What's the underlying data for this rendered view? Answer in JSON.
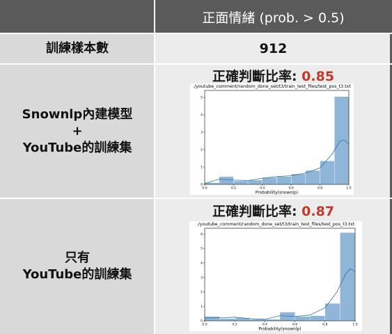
{
  "table": {
    "header_col1": "",
    "header_col2": "正面情緒 (prob. > 0.5)",
    "row1": {
      "label": "訓練樣本數",
      "value": "912"
    },
    "row2": {
      "label_line1": "Snownlp內建模型",
      "label_line2": "+",
      "label_line3": "YouTube的訓練集",
      "acc_label": "正確判斷比率: ",
      "acc_value": "0.85"
    },
    "row3": {
      "label_line1": "只有",
      "label_line2": "YouTube的訓練集",
      "acc_label": "正確判斷比率: ",
      "acc_value": "0.87"
    }
  },
  "colors": {
    "header_bg": "#5a5a5a",
    "label_bg": "#d9d9d9",
    "value_bg": "#ececec",
    "accent": "#c0392b",
    "bar": "#8fb5d7",
    "kde": "#2a6fb0"
  },
  "chart_data": [
    {
      "type": "bar",
      "title": "./youtube_comment/random_done_set/t3/train_test_files/test_pos_t3.txt",
      "xlabel": "Probability(snownlp)",
      "ylabel": "",
      "xlim": [
        0,
        1
      ],
      "ylim": [
        0,
        5.4
      ],
      "x_ticks": [
        "0.0",
        "0.2",
        "0.4",
        "0.6",
        "0.8",
        "1.0"
      ],
      "y_ticks": [
        "0",
        "1",
        "2",
        "3",
        "4",
        "5"
      ],
      "bins": [
        [
          0.0,
          0.1,
          0.1
        ],
        [
          0.1,
          0.2,
          0.45
        ],
        [
          0.2,
          0.3,
          0.2
        ],
        [
          0.3,
          0.4,
          0.25
        ],
        [
          0.4,
          0.5,
          0.4
        ],
        [
          0.5,
          0.6,
          0.45
        ],
        [
          0.6,
          0.7,
          0.6
        ],
        [
          0.7,
          0.8,
          0.8
        ],
        [
          0.8,
          0.9,
          1.35
        ],
        [
          0.9,
          1.0,
          5.05
        ]
      ],
      "kde": [
        [
          0.0,
          0.05
        ],
        [
          0.1,
          0.3
        ],
        [
          0.2,
          0.25
        ],
        [
          0.3,
          0.22
        ],
        [
          0.4,
          0.35
        ],
        [
          0.5,
          0.45
        ],
        [
          0.6,
          0.5
        ],
        [
          0.7,
          0.65
        ],
        [
          0.8,
          0.95
        ],
        [
          0.88,
          1.7
        ],
        [
          0.94,
          2.5
        ],
        [
          0.97,
          2.55
        ],
        [
          1.0,
          2.3
        ]
      ]
    },
    {
      "type": "bar",
      "title": "./youtube_comment/random_done_set/t3/train_test_files/test_pos_t3.txt",
      "xlabel": "Probability(snownlp)",
      "ylabel": "",
      "xlim": [
        0,
        1
      ],
      "ylim": [
        0,
        6.4
      ],
      "x_ticks": [
        "0.0",
        "0.2",
        "0.4",
        "0.6",
        "0.8",
        "1.0"
      ],
      "y_ticks": [
        "0",
        "1",
        "2",
        "3",
        "4",
        "5",
        "6"
      ],
      "bins": [
        [
          0.0,
          0.1,
          0.3
        ],
        [
          0.1,
          0.2,
          0.15
        ],
        [
          0.2,
          0.3,
          0.2
        ],
        [
          0.3,
          0.4,
          0.1
        ],
        [
          0.4,
          0.5,
          0.1
        ],
        [
          0.5,
          0.6,
          0.6
        ],
        [
          0.6,
          0.7,
          0.3
        ],
        [
          0.7,
          0.8,
          0.35
        ],
        [
          0.8,
          0.9,
          1.2
        ],
        [
          0.9,
          1.0,
          6.1
        ]
      ],
      "kde": [
        [
          0.0,
          0.2
        ],
        [
          0.1,
          0.2
        ],
        [
          0.2,
          0.25
        ],
        [
          0.3,
          0.15
        ],
        [
          0.4,
          0.1
        ],
        [
          0.5,
          0.35
        ],
        [
          0.6,
          0.3
        ],
        [
          0.7,
          0.4
        ],
        [
          0.8,
          0.9
        ],
        [
          0.88,
          2.0
        ],
        [
          0.94,
          3.3
        ],
        [
          0.97,
          3.6
        ],
        [
          1.0,
          3.4
        ]
      ]
    }
  ]
}
